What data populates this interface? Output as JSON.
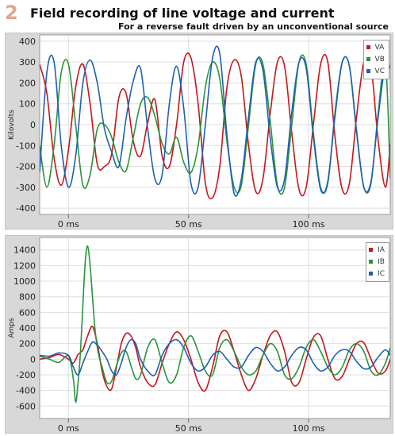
{
  "header": {
    "number": "2",
    "title": "Field recording of line voltage and current",
    "subtitle": "For a reverse fault driven by an unconventional source"
  },
  "colors": {
    "phase_a": "#c4171d",
    "phase_b": "#2a9339",
    "phase_c": "#1f5fb4",
    "panel_bg": "#d8d8d8",
    "plot_bg": "#ffffff"
  },
  "chart_data": [
    {
      "type": "line",
      "ylabel": "Kilovolts",
      "xlabel": "",
      "xlim": [
        -12,
        134
      ],
      "ylim": [
        -430,
        430
      ],
      "x_ticks": [
        0,
        50,
        100
      ],
      "x_tick_labels": [
        "0 ms",
        "50 ms",
        "100 ms"
      ],
      "y_ticks": [
        400,
        300,
        200,
        100,
        0,
        -100,
        -200,
        -300,
        -400
      ],
      "y_tick_labels": [
        "400",
        "300",
        "200",
        "100",
        "0",
        "-100",
        "-200",
        "-300",
        "-400"
      ],
      "grid": true,
      "legend_position": "top-right",
      "series": [
        {
          "name": "VA",
          "color": "#c4171d",
          "x": [
            -12,
            -9,
            -6,
            -3,
            0,
            3,
            6,
            9,
            12,
            15,
            18,
            21,
            24,
            27,
            30,
            33,
            36,
            39,
            42,
            45,
            48,
            51,
            54,
            57,
            60,
            63,
            66,
            69,
            72,
            75,
            78,
            81,
            84,
            87,
            90,
            93,
            96,
            99,
            102,
            105,
            108,
            111,
            114,
            117,
            120,
            123,
            126,
            129,
            132,
            134
          ],
          "y": [
            290,
            150,
            -160,
            -290,
            -120,
            180,
            290,
            100,
            -190,
            -200,
            -140,
            130,
            150,
            -80,
            -150,
            10,
            120,
            -150,
            -200,
            0,
            300,
            320,
            100,
            -280,
            -350,
            -200,
            180,
            310,
            230,
            -100,
            -320,
            -260,
            50,
            300,
            280,
            -40,
            -310,
            -300,
            0,
            290,
            300,
            -60,
            -310,
            -280,
            40,
            300,
            280,
            -80,
            -300,
            -90
          ]
        },
        {
          "name": "VB",
          "color": "#2a9339",
          "x": [
            -12,
            -9,
            -6,
            -3,
            0,
            3,
            6,
            9,
            12,
            15,
            18,
            21,
            24,
            27,
            30,
            33,
            36,
            39,
            42,
            45,
            48,
            51,
            54,
            57,
            60,
            63,
            66,
            69,
            72,
            75,
            78,
            81,
            84,
            87,
            90,
            93,
            96,
            99,
            102,
            105,
            108,
            111,
            114,
            117,
            120,
            123,
            126,
            129,
            132,
            134
          ],
          "y": [
            -100,
            -300,
            -100,
            250,
            290,
            0,
            -290,
            -240,
            -20,
            0,
            -60,
            -180,
            -220,
            -60,
            100,
            130,
            40,
            -90,
            -140,
            -60,
            -180,
            -230,
            -100,
            180,
            300,
            220,
            -80,
            -300,
            -290,
            0,
            290,
            290,
            20,
            -290,
            -300,
            0,
            300,
            290,
            -40,
            -300,
            -280,
            60,
            300,
            280,
            -40,
            -300,
            -280,
            60,
            300,
            -260
          ]
        },
        {
          "name": "VC",
          "color": "#1f5fb4",
          "x": [
            -12,
            -9,
            -6,
            -3,
            0,
            3,
            6,
            9,
            12,
            15,
            18,
            21,
            24,
            27,
            30,
            33,
            36,
            39,
            42,
            45,
            48,
            51,
            54,
            57,
            60,
            63,
            66,
            69,
            72,
            75,
            78,
            81,
            84,
            87,
            90,
            93,
            96,
            99,
            102,
            105,
            108,
            111,
            114,
            117,
            120,
            123,
            126,
            129,
            132,
            134
          ],
          "y": [
            -230,
            250,
            300,
            -100,
            -300,
            -150,
            200,
            310,
            200,
            -20,
            -130,
            -200,
            30,
            210,
            270,
            -20,
            -260,
            -240,
            100,
            280,
            80,
            -280,
            -300,
            0,
            320,
            340,
            -50,
            -330,
            -260,
            40,
            300,
            260,
            -60,
            -300,
            -260,
            60,
            300,
            270,
            -60,
            -310,
            -270,
            40,
            300,
            280,
            -30,
            -300,
            -270,
            40,
            290,
            270
          ]
        }
      ]
    },
    {
      "type": "line",
      "ylabel": "Amps",
      "xlabel": "",
      "xlim": [
        -12,
        134
      ],
      "ylim": [
        -760,
        1560
      ],
      "x_ticks": [
        0,
        50,
        100
      ],
      "x_tick_labels": [
        "0 ms",
        "50 ms",
        "100 ms"
      ],
      "y_ticks": [
        1400,
        1200,
        1000,
        800,
        600,
        400,
        200,
        0,
        -200,
        -400,
        -600
      ],
      "y_tick_labels": [
        "1400",
        "1200",
        "1000",
        "800",
        "600",
        "400",
        "200",
        "0",
        "-200",
        "-400",
        "-600"
      ],
      "grid": true,
      "legend_position": "top-right",
      "series": [
        {
          "name": "IA",
          "color": "#c4171d",
          "x": [
            -12,
            -8,
            -4,
            0,
            2,
            4,
            6,
            8,
            10,
            12,
            14,
            16,
            18,
            20,
            22,
            24,
            26,
            28,
            30,
            33,
            36,
            39,
            42,
            45,
            48,
            51,
            54,
            57,
            60,
            63,
            66,
            69,
            72,
            75,
            78,
            81,
            84,
            87,
            90,
            93,
            96,
            99,
            102,
            105,
            108,
            111,
            114,
            117,
            120,
            123,
            126,
            129,
            132,
            134
          ],
          "y": [
            0,
            20,
            60,
            0,
            -50,
            60,
            120,
            300,
            420,
            200,
            -150,
            -350,
            -380,
            -100,
            200,
            330,
            300,
            150,
            -100,
            -300,
            -330,
            -50,
            200,
            350,
            250,
            0,
            -300,
            -400,
            -100,
            300,
            350,
            100,
            -200,
            -400,
            -250,
            50,
            300,
            350,
            100,
            -300,
            -300,
            0,
            280,
            300,
            0,
            -250,
            -220,
            0,
            200,
            210,
            0,
            -180,
            -150,
            0
          ]
        },
        {
          "name": "IB",
          "color": "#2a9339",
          "x": [
            -12,
            -8,
            -4,
            0,
            2,
            3,
            4,
            5,
            6,
            7,
            8,
            9,
            10,
            11,
            12,
            13,
            14,
            16,
            18,
            20,
            22,
            24,
            26,
            28,
            30,
            33,
            36,
            39,
            42,
            45,
            48,
            51,
            54,
            57,
            60,
            63,
            66,
            69,
            72,
            75,
            78,
            81,
            84,
            87,
            90,
            93,
            96,
            99,
            102,
            105,
            108,
            111,
            114,
            117,
            120,
            123,
            126,
            129,
            132,
            134
          ],
          "y": [
            40,
            0,
            -40,
            40,
            -250,
            -550,
            -300,
            100,
            700,
            1250,
            1450,
            1200,
            800,
            400,
            150,
            0,
            -100,
            -300,
            -280,
            -80,
            80,
            100,
            -80,
            -250,
            -200,
            150,
            250,
            -50,
            -300,
            -200,
            150,
            300,
            100,
            -150,
            -200,
            150,
            250,
            100,
            -100,
            -200,
            -150,
            50,
            200,
            100,
            -200,
            -250,
            -100,
            150,
            250,
            100,
            -100,
            -200,
            -100,
            120,
            200,
            100,
            -150,
            -200,
            -50,
            150
          ]
        },
        {
          "name": "IC",
          "color": "#1f5fb4",
          "x": [
            -12,
            -8,
            -4,
            0,
            2,
            4,
            6,
            8,
            10,
            12,
            14,
            16,
            18,
            20,
            22,
            24,
            26,
            28,
            30,
            33,
            36,
            39,
            42,
            45,
            48,
            51,
            54,
            57,
            60,
            63,
            66,
            69,
            72,
            75,
            78,
            81,
            84,
            87,
            90,
            93,
            96,
            99,
            102,
            105,
            108,
            111,
            114,
            117,
            120,
            123,
            126,
            129,
            132,
            134
          ],
          "y": [
            50,
            40,
            80,
            50,
            -100,
            -200,
            -50,
            100,
            220,
            180,
            100,
            0,
            -150,
            -200,
            -50,
            150,
            250,
            200,
            0,
            -150,
            -200,
            50,
            200,
            250,
            150,
            -50,
            -150,
            -100,
            50,
            100,
            0,
            -100,
            -100,
            50,
            150,
            100,
            -50,
            -150,
            -100,
            50,
            150,
            120,
            -50,
            -150,
            -100,
            50,
            120,
            100,
            -30,
            -120,
            -100,
            30,
            120,
            50
          ]
        }
      ]
    }
  ]
}
